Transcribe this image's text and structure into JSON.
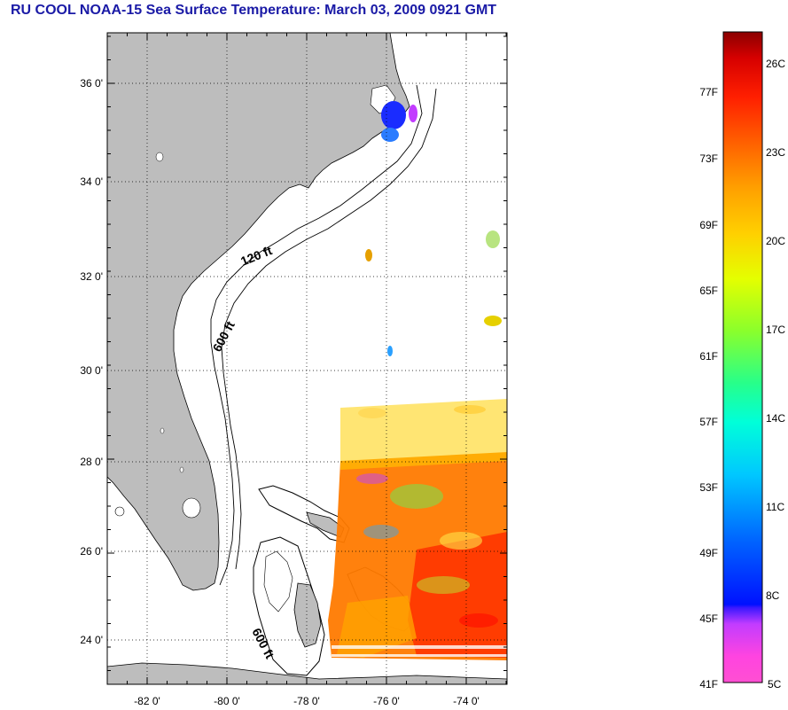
{
  "title": "RU COOL  NOAA-15  Sea Surface Temperature:  March 03, 2009 0921 GMT",
  "map": {
    "lat_labels": [
      "36 0'",
      "34 0'",
      "32 0'",
      "30 0'",
      "28 0'",
      "26 0'",
      "24 0'"
    ],
    "lon_labels": [
      "-82 0'",
      "-80 0'",
      "-78 0'",
      "-76 0'",
      "-74 0'"
    ],
    "isobath_labels": [
      "120 ft",
      "600 ft",
      "600 ft"
    ],
    "land_color": "#bdbdbd",
    "ocean_color": "#ffffff"
  },
  "colorbar": {
    "fahrenheit_labels": [
      "77F",
      "73F",
      "69F",
      "65F",
      "61F",
      "57F",
      "53F",
      "49F",
      "45F",
      "41F"
    ],
    "celsius_labels": [
      "26C",
      "23C",
      "20C",
      "17C",
      "14C",
      "11C",
      "8C",
      "5C"
    ],
    "colors": [
      "#ff4fd2",
      "#c23cff",
      "#7b2cff",
      "#0011ff",
      "#0066ff",
      "#00c8ff",
      "#00ffd9",
      "#27ff8a",
      "#8aff2c",
      "#e4ff00",
      "#ffe100",
      "#ffa000",
      "#ff6000",
      "#ff1f00",
      "#d60000",
      "#8b0000"
    ]
  }
}
